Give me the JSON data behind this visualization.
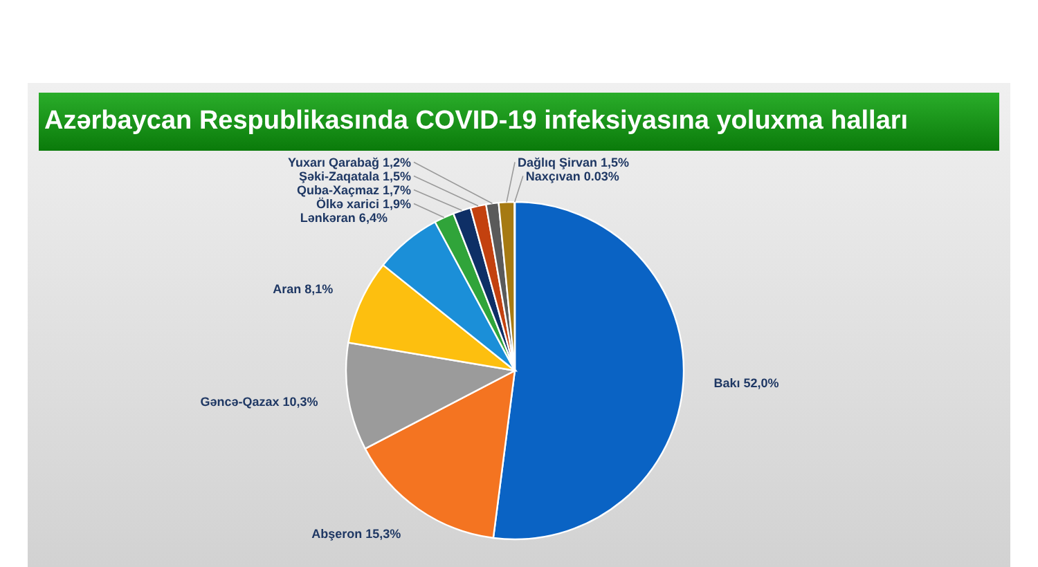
{
  "chart_data": {
    "type": "pie",
    "title": "Azərbaycan Respublikasında COVID-19 infeksiyasına yoluxma halları",
    "categories": [
      "Bakı",
      "Abşeron",
      "Gəncə-Qazax",
      "Aran",
      "Lənkəran",
      "Ölkə xarici",
      "Quba-Xaçmaz",
      "Şəki-Zaqatala",
      "Yuxarı Qarabağ",
      "Dağlıq Şirvan",
      "Naxçıvan"
    ],
    "values": [
      52.0,
      15.3,
      10.3,
      8.1,
      6.4,
      1.9,
      1.7,
      1.5,
      1.2,
      1.5,
      0.03
    ],
    "value_labels": [
      "52,0%",
      "15,3%",
      "10,3%",
      "8,1%",
      "6,4%",
      "1,9%",
      "1,7%",
      "1,5%",
      "1,2%",
      "1,5%",
      "0.03%"
    ],
    "colors": [
      "#0a63c4",
      "#f47421",
      "#9b9b9b",
      "#fdbf0f",
      "#1b8fd8",
      "#30a43a",
      "#0e2f66",
      "#c3410f",
      "#5a5a5a",
      "#a67a12",
      "#5b7fbf"
    ]
  }
}
